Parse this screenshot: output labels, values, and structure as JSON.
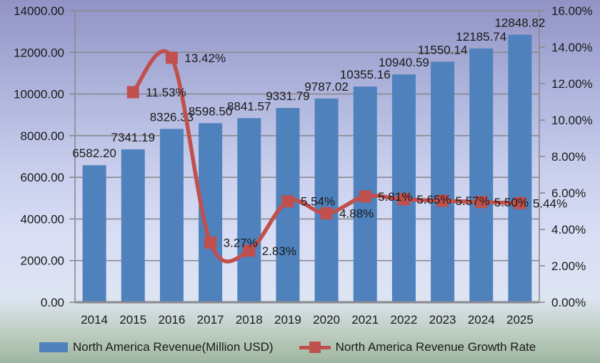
{
  "chart_data": {
    "type": "bar",
    "title": "",
    "categories": [
      "2014",
      "2015",
      "2016",
      "2017",
      "2018",
      "2019",
      "2020",
      "2021",
      "2022",
      "2023",
      "2024",
      "2025"
    ],
    "series": [
      {
        "name": "North America Revenue(Million USD)",
        "type": "bar",
        "axis": "left",
        "color": "#4F81BD",
        "values": [
          6582.2,
          7341.19,
          8326.33,
          8598.5,
          8841.57,
          9331.79,
          9787.02,
          10355.16,
          10940.59,
          11550.14,
          12185.74,
          12848.82
        ],
        "labels": [
          "6582.20",
          "7341.19",
          "8326.33",
          "8598.50",
          "8841.57",
          "9331.79",
          "9787.02",
          "10355.16",
          "10940.59",
          "11550.14",
          "12185.74",
          "12848.82"
        ]
      },
      {
        "name": "North America Revenue Growth Rate",
        "type": "line",
        "axis": "right",
        "color": "#C0504D",
        "values": [
          null,
          11.53,
          13.42,
          3.27,
          2.83,
          5.54,
          4.88,
          5.81,
          5.65,
          5.57,
          5.5,
          5.44
        ],
        "labels": [
          "",
          "11.53%",
          "13.42%",
          "3.27%",
          "2.83%",
          "5.54%",
          "4.88%",
          "5.81%",
          "5.65%",
          "5.57%",
          "5.50%",
          "5.44%"
        ]
      }
    ],
    "left_axis": {
      "min": 0,
      "max": 14000,
      "step": 2000,
      "tick_labels": [
        "0.00",
        "2000.00",
        "4000.00",
        "6000.00",
        "8000.00",
        "10000.00",
        "12000.00",
        "14000.00"
      ]
    },
    "right_axis": {
      "min": 0,
      "max": 16,
      "step": 2,
      "tick_labels": [
        "0.00%",
        "2.00%",
        "4.00%",
        "6.00%",
        "8.00%",
        "10.00%",
        "12.00%",
        "14.00%",
        "16.00%"
      ]
    },
    "grid": true,
    "legend_position": "bottom",
    "colors": {
      "grid": "#8a8a8f",
      "axis": "#8a8a8f",
      "text": "#1a1a1a",
      "bar": "#4F81BD",
      "line": "#C0504D"
    }
  }
}
